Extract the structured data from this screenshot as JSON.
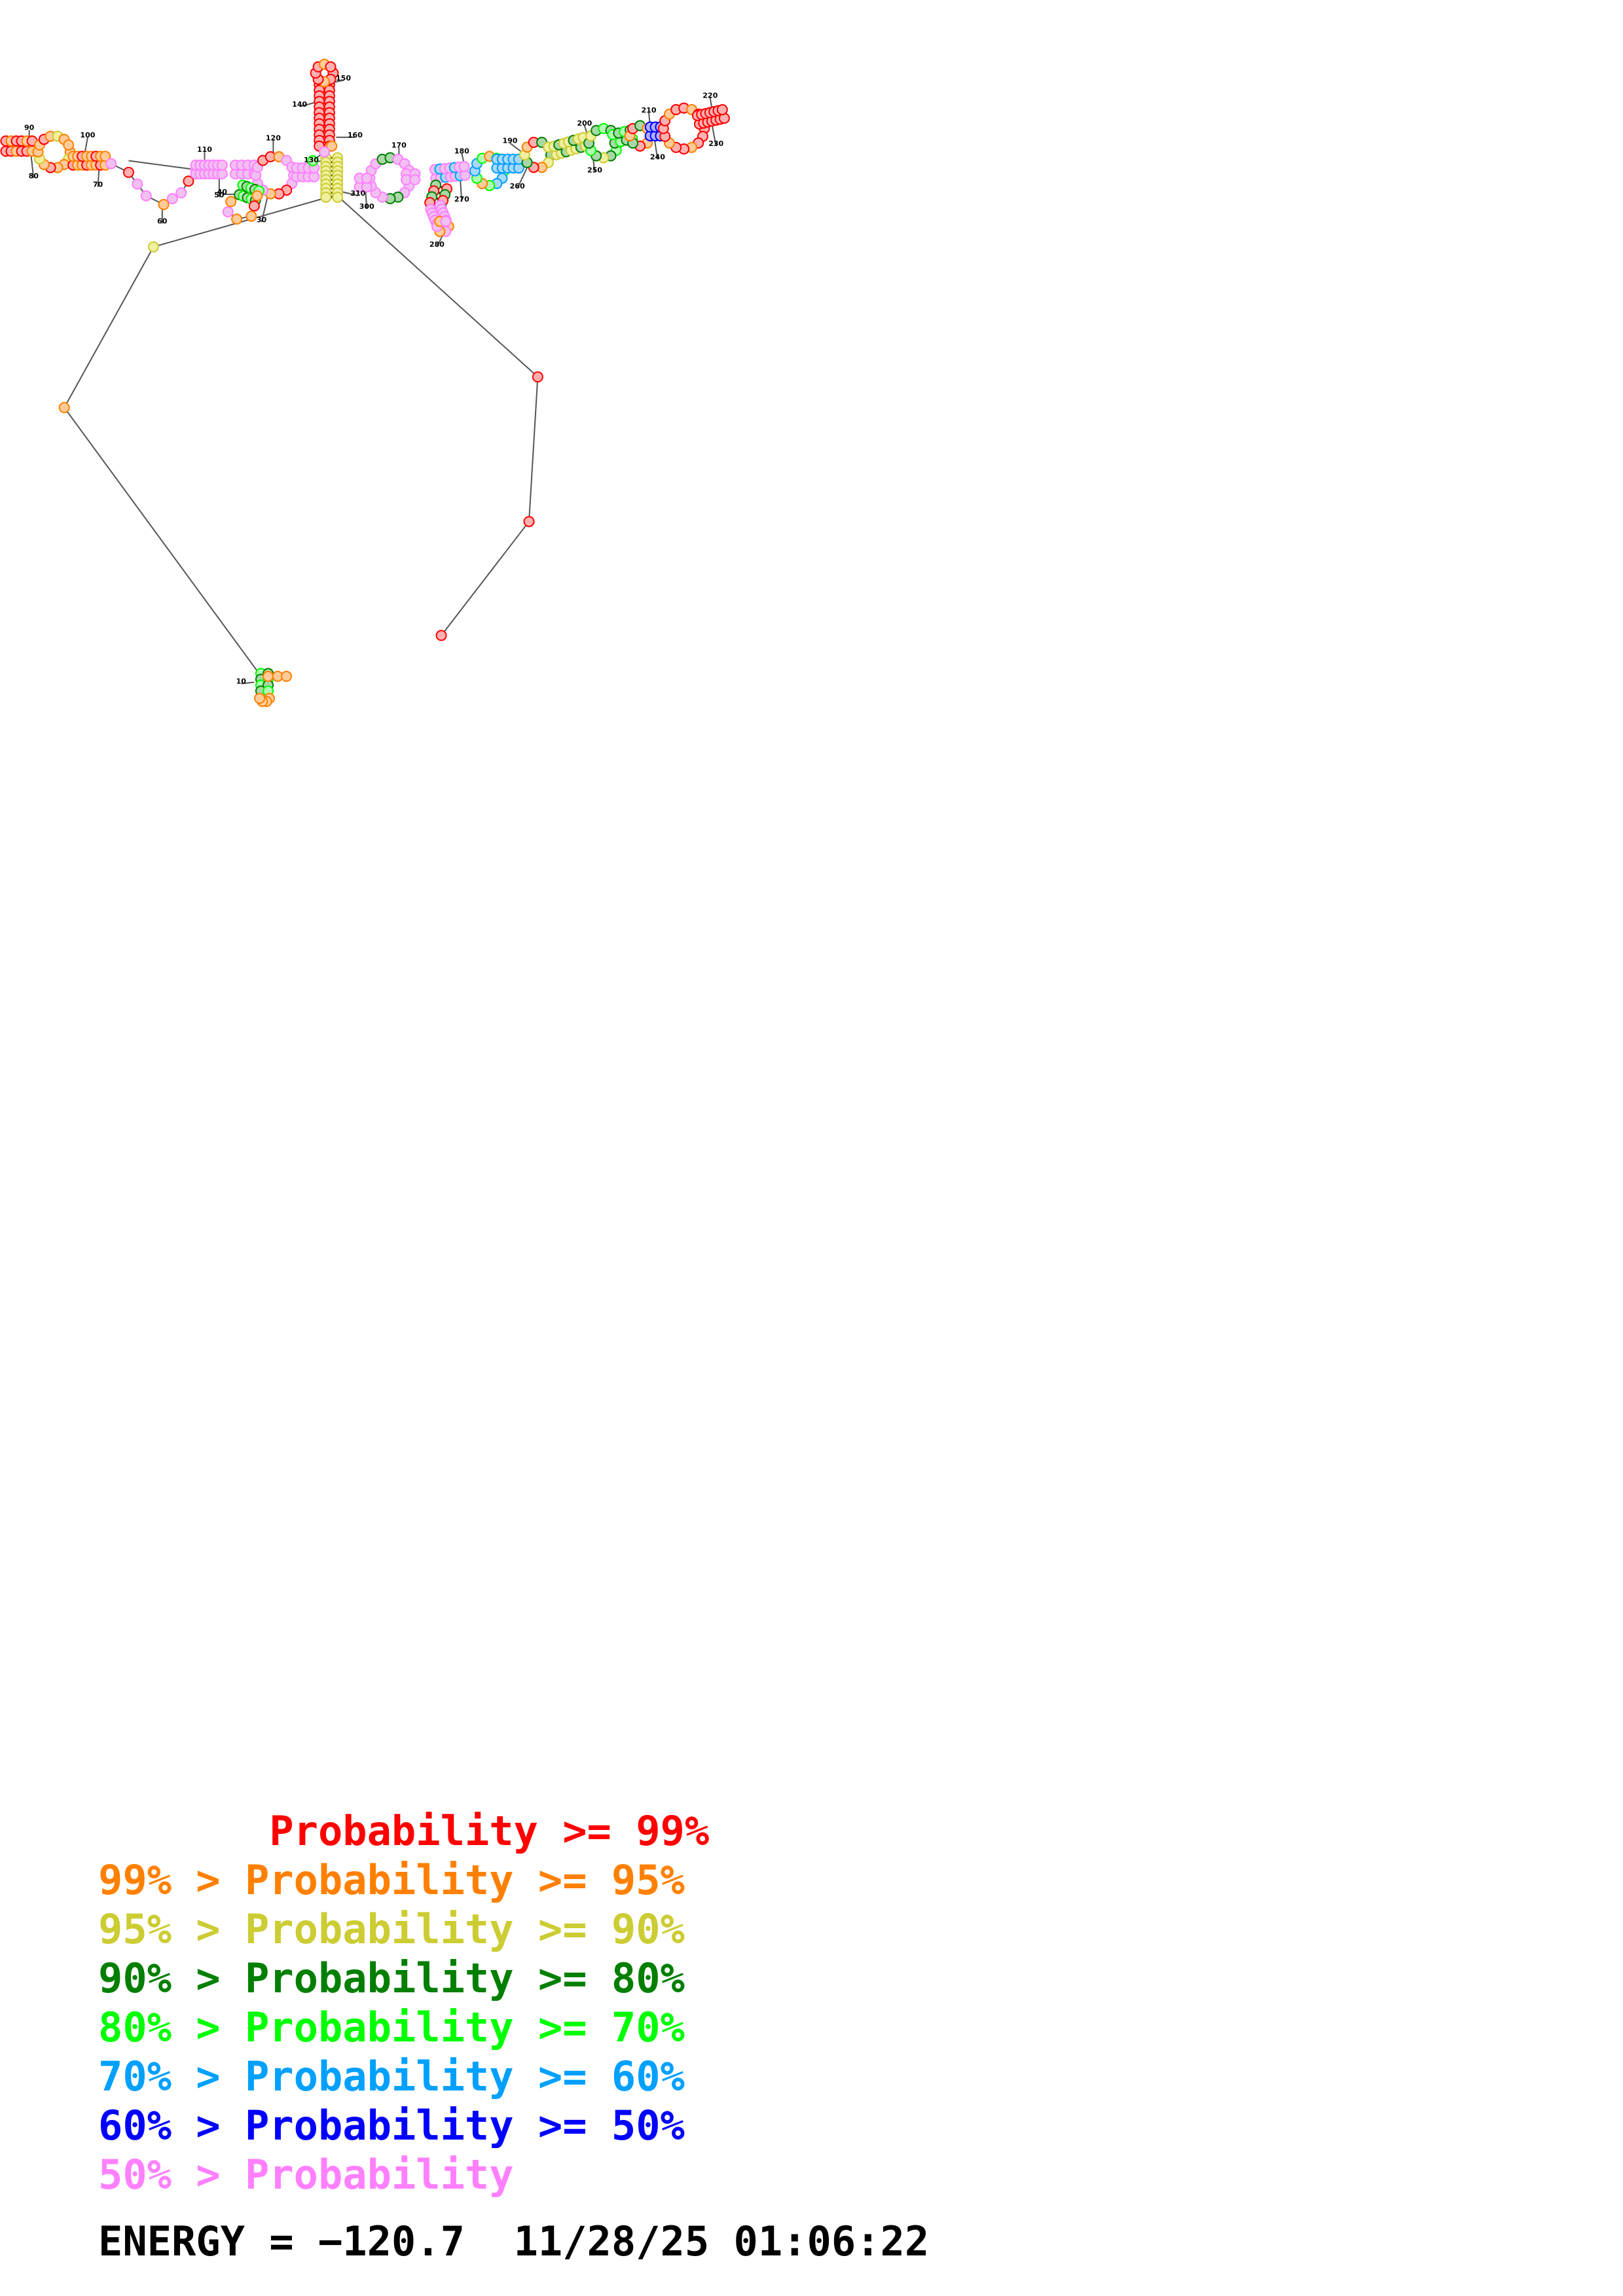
{
  "diagram": {
    "type": "rna-secondary-structure",
    "position_labels": [
      "10",
      "30",
      "40",
      "50",
      "60",
      "70",
      "80",
      "90",
      "100",
      "110",
      "120",
      "130",
      "140",
      "150",
      "160",
      "170",
      "180",
      "190",
      "200",
      "210",
      "220",
      "230",
      "240",
      "250",
      "260",
      "270",
      "280",
      "300",
      "310"
    ]
  },
  "legend": {
    "rows": [
      {
        "text": "       Probability >= 99%",
        "color": "#ff0000"
      },
      {
        "text": "99% > Probability >= 95%",
        "color": "#ff8000"
      },
      {
        "text": "95% > Probability >= 90%",
        "color": "#cccc33"
      },
      {
        "text": "90% > Probability >= 80%",
        "color": "#007f00"
      },
      {
        "text": "80% > Probability >= 70%",
        "color": "#00ff00"
      },
      {
        "text": "70% > Probability >= 60%",
        "color": "#00a0ff"
      },
      {
        "text": "60% > Probability >= 50%",
        "color": "#0000ff"
      },
      {
        "text": "50% > Probability",
        "color": "#ff80ff"
      }
    ]
  },
  "footer": {
    "energy_label": "ENERGY = −120.7",
    "timestamp": "11/28/25 01:06:22"
  }
}
